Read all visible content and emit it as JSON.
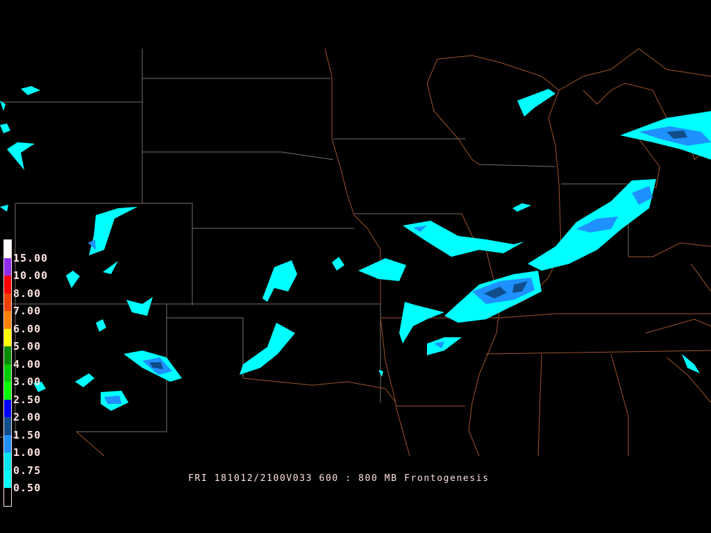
{
  "title": "FRI 181012/2100V033 600 : 800 MB Frontogenesis",
  "legend": {
    "labels": [
      "15.00",
      "10.00",
      "8.00",
      "7.00",
      "6.00",
      "5.00",
      "4.00",
      "3.00",
      "2.50",
      "2.00",
      "1.50",
      "1.00",
      "0.75",
      "0.50"
    ],
    "colors": [
      "#ffffff",
      "#912cee",
      "#ff0000",
      "#ee4000",
      "#ff7f00",
      "#ffff00",
      "#008b00",
      "#00cd00",
      "#00ff00",
      "#0000ff",
      "#104e8b",
      "#1e90ff",
      "#00e5ee",
      "#00ffff",
      "#000000"
    ]
  },
  "map_colors": {
    "state_border": "#a0522d",
    "county_border": "#808080",
    "fill_low": "#00ffff",
    "fill_mid": "#1e90ff",
    "fill_high": "#104e8b"
  }
}
